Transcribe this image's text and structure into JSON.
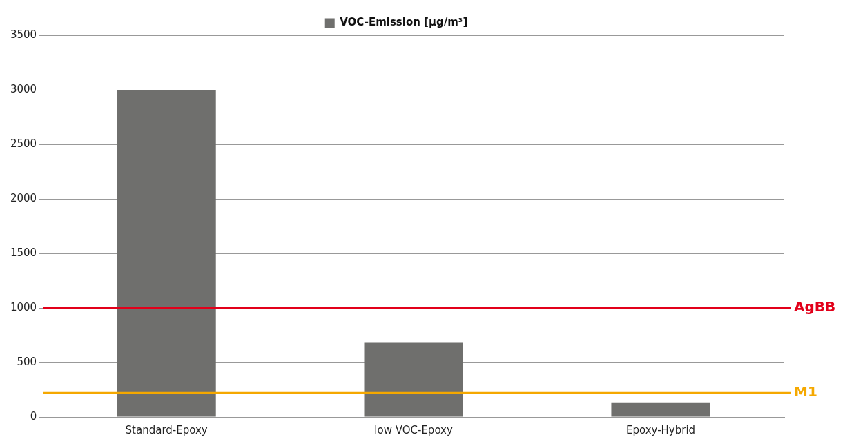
{
  "chart_data": {
    "type": "bar",
    "categories": [
      "Standard-Epoxy",
      "low VOC-Epoxy",
      "Epoxy-Hybrid"
    ],
    "series": [
      {
        "name": "VOC-Emission [µg/m³]",
        "color": "#6f6f6d",
        "values": [
          3000,
          680,
          135
        ]
      }
    ],
    "ylim": [
      0,
      3500
    ],
    "yticks": [
      0,
      500,
      1000,
      1500,
      2000,
      2500,
      3000,
      3500
    ],
    "grid": "y",
    "legend": "top",
    "ref_lines": [
      {
        "axis": "y",
        "value": 1000,
        "label": "AgBB",
        "color": "#e2001a",
        "line_style": "solid"
      },
      {
        "axis": "y",
        "value": 220,
        "label": "M1",
        "color": "#f5a800",
        "line_style": "solid"
      }
    ]
  }
}
